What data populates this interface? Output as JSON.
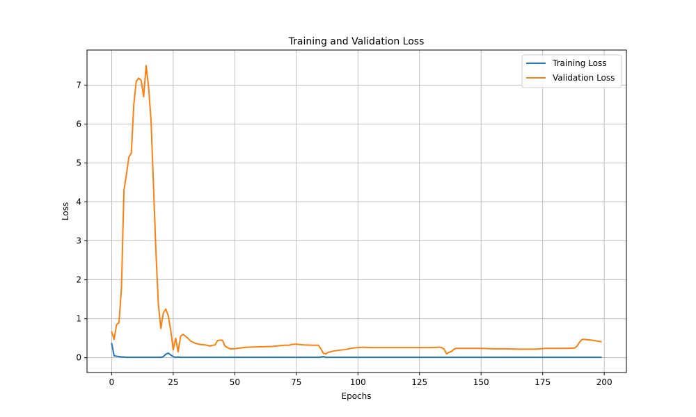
{
  "chart_data": {
    "type": "line",
    "title": "Training and Validation Loss",
    "xlabel": "Epochs",
    "ylabel": "Loss",
    "xlim": [
      -10,
      209
    ],
    "ylim": [
      -0.38,
      7.9
    ],
    "xticks": [
      0,
      25,
      50,
      75,
      100,
      125,
      150,
      175,
      200
    ],
    "yticks": [
      0,
      1,
      2,
      3,
      4,
      5,
      6,
      7
    ],
    "grid": true,
    "legend_position": "top-right",
    "series": [
      {
        "name": "Training Loss",
        "color": "#1f77b4",
        "points": [
          [
            0,
            0.38
          ],
          [
            1,
            0.05
          ],
          [
            2,
            0.04
          ],
          [
            3,
            0.03
          ],
          [
            4,
            0.02
          ],
          [
            5,
            0.02
          ],
          [
            6,
            0.01
          ],
          [
            8,
            0.01
          ],
          [
            10,
            0.01
          ],
          [
            15,
            0.01
          ],
          [
            20,
            0.01
          ],
          [
            21,
            0.03
          ],
          [
            22,
            0.09
          ],
          [
            23,
            0.12
          ],
          [
            24,
            0.07
          ],
          [
            25,
            0.03
          ],
          [
            26,
            0.01
          ],
          [
            27,
            0.02
          ],
          [
            28,
            0.01
          ],
          [
            30,
            0.01
          ],
          [
            40,
            0.01
          ],
          [
            50,
            0.01
          ],
          [
            60,
            0.01
          ],
          [
            70,
            0.01
          ],
          [
            80,
            0.01
          ],
          [
            84,
            0.01
          ],
          [
            85,
            0.02
          ],
          [
            86,
            0.03
          ],
          [
            87,
            0.01
          ],
          [
            90,
            0.01
          ],
          [
            100,
            0.01
          ],
          [
            120,
            0.01
          ],
          [
            140,
            0.01
          ],
          [
            160,
            0.01
          ],
          [
            180,
            0.01
          ],
          [
            199,
            0.01
          ]
        ]
      },
      {
        "name": "Validation Loss",
        "color": "#ff7f0e",
        "points": [
          [
            0,
            0.68
          ],
          [
            1,
            0.47
          ],
          [
            2,
            0.85
          ],
          [
            3,
            0.9
          ],
          [
            4,
            1.8
          ],
          [
            5,
            4.3
          ],
          [
            6,
            4.7
          ],
          [
            7,
            5.15
          ],
          [
            8,
            5.25
          ],
          [
            9,
            6.5
          ],
          [
            10,
            7.1
          ],
          [
            11,
            7.18
          ],
          [
            12,
            7.12
          ],
          [
            13,
            6.7
          ],
          [
            14,
            7.5
          ],
          [
            15,
            6.95
          ],
          [
            16,
            6.1
          ],
          [
            17,
            4.4
          ],
          [
            18,
            2.7
          ],
          [
            19,
            1.35
          ],
          [
            20,
            0.75
          ],
          [
            21,
            1.15
          ],
          [
            22,
            1.25
          ],
          [
            23,
            1.08
          ],
          [
            24,
            0.7
          ],
          [
            25,
            0.2
          ],
          [
            26,
            0.5
          ],
          [
            27,
            0.15
          ],
          [
            28,
            0.55
          ],
          [
            29,
            0.6
          ],
          [
            30,
            0.55
          ],
          [
            31,
            0.5
          ],
          [
            32,
            0.43
          ],
          [
            34,
            0.37
          ],
          [
            36,
            0.34
          ],
          [
            38,
            0.33
          ],
          [
            40,
            0.3
          ],
          [
            41,
            0.32
          ],
          [
            42,
            0.33
          ],
          [
            43,
            0.44
          ],
          [
            44,
            0.45
          ],
          [
            45,
            0.45
          ],
          [
            46,
            0.3
          ],
          [
            47,
            0.26
          ],
          [
            48,
            0.23
          ],
          [
            50,
            0.23
          ],
          [
            52,
            0.25
          ],
          [
            55,
            0.27
          ],
          [
            60,
            0.28
          ],
          [
            65,
            0.29
          ],
          [
            70,
            0.32
          ],
          [
            72,
            0.32
          ],
          [
            73,
            0.34
          ],
          [
            75,
            0.35
          ],
          [
            76,
            0.34
          ],
          [
            78,
            0.33
          ],
          [
            82,
            0.32
          ],
          [
            84,
            0.32
          ],
          [
            85,
            0.22
          ],
          [
            86,
            0.11
          ],
          [
            87,
            0.1
          ],
          [
            88,
            0.14
          ],
          [
            90,
            0.17
          ],
          [
            92,
            0.19
          ],
          [
            95,
            0.21
          ],
          [
            98,
            0.25
          ],
          [
            100,
            0.26
          ],
          [
            102,
            0.27
          ],
          [
            105,
            0.26
          ],
          [
            110,
            0.26
          ],
          [
            115,
            0.26
          ],
          [
            120,
            0.26
          ],
          [
            125,
            0.26
          ],
          [
            130,
            0.26
          ],
          [
            133,
            0.27
          ],
          [
            134,
            0.26
          ],
          [
            135,
            0.22
          ],
          [
            136,
            0.1
          ],
          [
            137,
            0.14
          ],
          [
            138,
            0.16
          ],
          [
            139,
            0.22
          ],
          [
            140,
            0.24
          ],
          [
            145,
            0.24
          ],
          [
            150,
            0.24
          ],
          [
            155,
            0.23
          ],
          [
            160,
            0.23
          ],
          [
            165,
            0.22
          ],
          [
            170,
            0.22
          ],
          [
            172,
            0.22
          ],
          [
            174,
            0.23
          ],
          [
            176,
            0.24
          ],
          [
            180,
            0.24
          ],
          [
            185,
            0.24
          ],
          [
            188,
            0.25
          ],
          [
            189,
            0.3
          ],
          [
            190,
            0.4
          ],
          [
            191,
            0.47
          ],
          [
            192,
            0.47
          ],
          [
            195,
            0.45
          ],
          [
            199,
            0.41
          ]
        ]
      }
    ]
  }
}
